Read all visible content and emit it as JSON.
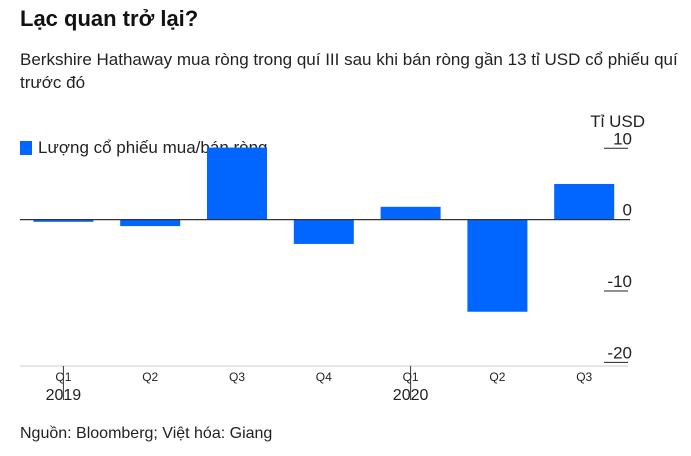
{
  "title": "Lạc quan trở lại?",
  "subtitle": "Berkshire Hathaway mua ròng trong quí III sau khi bán ròng gần 13 tỉ USD cổ phiếu quí trước đó",
  "source": "Nguồn: Bloomberg; Việt hóa: Giang",
  "colors": {
    "bar": "#0066ff",
    "axis": "#333333",
    "tick": "#222222",
    "separator": "#cccccc"
  },
  "chart_data": {
    "type": "bar",
    "categories": [
      "Q1",
      "Q2",
      "Q3",
      "Q4",
      "Q1",
      "Q2",
      "Q3"
    ],
    "years": [
      {
        "label": "2019",
        "start_index": 0
      },
      {
        "label": "2020",
        "start_index": 4
      }
    ],
    "series": [
      {
        "name": "Lượng cổ phiếu mua/bán ròng",
        "values": [
          -0.3,
          -0.9,
          10.1,
          -3.4,
          1.8,
          -12.9,
          5.0
        ]
      }
    ],
    "ylabel": "Tỉ USD",
    "ylim": [
      -20.5,
      12
    ],
    "yticks": [
      10,
      0,
      -10,
      -20
    ],
    "ytick_labels": [
      "10",
      "0",
      "-10",
      "-20"
    ],
    "legend_position": "top-left",
    "grid": false
  }
}
